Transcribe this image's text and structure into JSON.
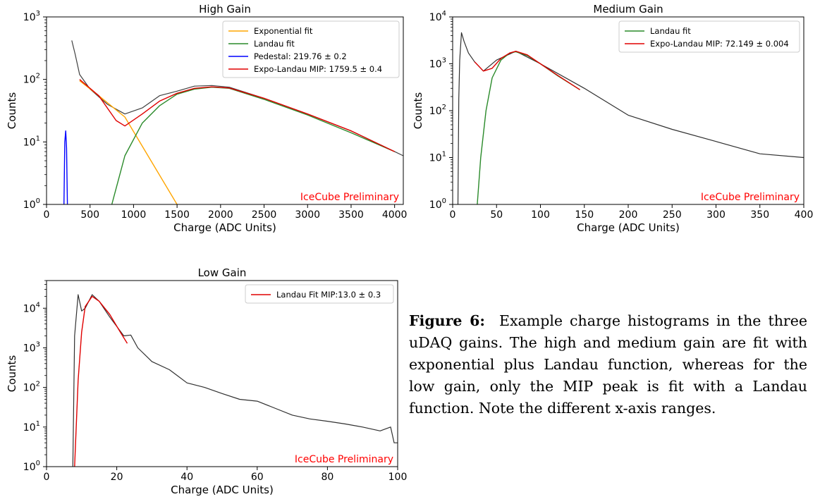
{
  "chart_data": [
    {
      "type": "line",
      "title": "High Gain",
      "xlabel": "Charge (ADC Units)",
      "ylabel": "Counts",
      "xlim": [
        0,
        4100
      ],
      "ylim": [
        1,
        1000
      ],
      "yscale": "log",
      "xticks": [
        "0",
        "500",
        "1000",
        "1500",
        "2000",
        "2500",
        "3000",
        "3500",
        "4000"
      ],
      "yticks": [
        "10^0",
        "10^1",
        "10^2",
        "10^3"
      ],
      "legend_position": "top-right",
      "annotation": "IceCube Preliminary",
      "series": [
        {
          "name": "Exponential fit",
          "color": "#ffa500",
          "points": [
            [
              380,
              95
            ],
            [
              600,
              55
            ],
            [
              900,
              25
            ],
            [
              1200,
              5
            ],
            [
              1500,
              1
            ]
          ]
        },
        {
          "name": "Landau fit",
          "color": "#2a8a2a",
          "points": [
            [
              750,
              1
            ],
            [
              900,
              6
            ],
            [
              1100,
              20
            ],
            [
              1300,
              38
            ],
            [
              1500,
              58
            ],
            [
              1700,
              70
            ],
            [
              1900,
              75
            ],
            [
              2100,
              72
            ],
            [
              2500,
              48
            ],
            [
              3000,
              27
            ],
            [
              3500,
              14
            ],
            [
              4000,
              7
            ]
          ]
        },
        {
          "name": "Pedestal: 219.76 ± 0.2",
          "color": "#0000ff",
          "points": [
            [
              200,
              1
            ],
            [
              210,
              10
            ],
            [
              220,
              15
            ],
            [
              230,
              8
            ],
            [
              240,
              1
            ]
          ]
        },
        {
          "name": "Expo-Landau MIP: 1759.5 ± 0.4",
          "color": "#e00000",
          "points": [
            [
              380,
              100
            ],
            [
              600,
              55
            ],
            [
              800,
              22
            ],
            [
              900,
              18
            ],
            [
              1100,
              28
            ],
            [
              1300,
              45
            ],
            [
              1500,
              60
            ],
            [
              1700,
              72
            ],
            [
              1900,
              76
            ],
            [
              2100,
              73
            ],
            [
              2500,
              50
            ],
            [
              3000,
              28
            ],
            [
              3500,
              15
            ],
            [
              4000,
              7
            ]
          ]
        },
        {
          "name": "",
          "color": "#404040",
          "points": [
            [
              290,
              420
            ],
            [
              330,
              250
            ],
            [
              380,
              120
            ],
            [
              500,
              70
            ],
            [
              700,
              40
            ],
            [
              900,
              28
            ],
            [
              1100,
              35
            ],
            [
              1300,
              55
            ],
            [
              1500,
              65
            ],
            [
              1700,
              78
            ],
            [
              1900,
              80
            ],
            [
              2100,
              75
            ],
            [
              2500,
              50
            ],
            [
              3000,
              28
            ],
            [
              3500,
              15
            ],
            [
              4000,
              7
            ],
            [
              4100,
              6
            ]
          ]
        }
      ]
    },
    {
      "type": "line",
      "title": "Medium Gain",
      "xlabel": "Charge (ADC Units)",
      "ylabel": "Counts",
      "xlim": [
        0,
        400
      ],
      "ylim": [
        1,
        10000
      ],
      "yscale": "log",
      "xticks": [
        "0",
        "50",
        "100",
        "150",
        "200",
        "250",
        "300",
        "350",
        "400"
      ],
      "yticks": [
        "10^0",
        "10^1",
        "10^2",
        "10^3",
        "10^4"
      ],
      "legend_position": "top-right",
      "annotation": "IceCube Preliminary",
      "series": [
        {
          "name": "Landau fit",
          "color": "#2a8a2a",
          "points": [
            [
              28,
              1
            ],
            [
              32,
              10
            ],
            [
              38,
              100
            ],
            [
              45,
              500
            ],
            [
              55,
              1200
            ],
            [
              65,
              1700
            ],
            [
              72,
              1800
            ],
            [
              85,
              1500
            ],
            [
              100,
              1000
            ],
            [
              120,
              550
            ],
            [
              145,
              280
            ]
          ]
        },
        {
          "name": "Expo-Landau MIP: 72.149 ± 0.004",
          "color": "#e00000",
          "points": [
            [
              25,
              1100
            ],
            [
              35,
              700
            ],
            [
              45,
              800
            ],
            [
              55,
              1300
            ],
            [
              65,
              1700
            ],
            [
              72,
              1850
            ],
            [
              85,
              1550
            ],
            [
              100,
              1000
            ],
            [
              120,
              560
            ],
            [
              145,
              280
            ]
          ]
        },
        {
          "name": "",
          "color": "#303030",
          "points": [
            [
              6,
              1
            ],
            [
              7,
              180
            ],
            [
              8,
              1200
            ],
            [
              10,
              4600
            ],
            [
              13,
              3000
            ],
            [
              18,
              1700
            ],
            [
              25,
              1100
            ],
            [
              35,
              700
            ],
            [
              50,
              1200
            ],
            [
              72,
              1850
            ],
            [
              100,
              1000
            ],
            [
              150,
              300
            ],
            [
              200,
              80
            ],
            [
              250,
              40
            ],
            [
              300,
              22
            ],
            [
              350,
              12
            ],
            [
              400,
              10
            ]
          ]
        }
      ]
    },
    {
      "type": "line",
      "title": "Low Gain",
      "xlabel": "Charge (ADC Units)",
      "ylabel": "Counts",
      "xlim": [
        0,
        100
      ],
      "ylim": [
        1,
        50000
      ],
      "yscale": "log",
      "xticks": [
        "0",
        "20",
        "40",
        "60",
        "80",
        "100"
      ],
      "yticks": [
        "10^0",
        "10^1",
        "10^2",
        "10^3",
        "10^4"
      ],
      "legend_position": "top-right",
      "annotation": "IceCube Preliminary",
      "series": [
        {
          "name": "Landau Fit MIP:13.0 ± 0.3",
          "color": "#e00000",
          "points": [
            [
              8,
              1
            ],
            [
              9,
              150
            ],
            [
              10,
              2500
            ],
            [
              11,
              11000
            ],
            [
              13,
              20000
            ],
            [
              15,
              15000
            ],
            [
              18,
              7000
            ],
            [
              21,
              2500
            ],
            [
              23,
              1300
            ]
          ]
        },
        {
          "name": "",
          "color": "#303030",
          "points": [
            [
              7.5,
              1
            ],
            [
              8,
              2000
            ],
            [
              9,
              22000
            ],
            [
              10,
              8500
            ],
            [
              11,
              10000
            ],
            [
              13,
              22000
            ],
            [
              15,
              15000
            ],
            [
              18,
              6000
            ],
            [
              22,
              2000
            ],
            [
              24,
              2100
            ],
            [
              26,
              1000
            ],
            [
              30,
              450
            ],
            [
              35,
              280
            ],
            [
              40,
              130
            ],
            [
              45,
              100
            ],
            [
              50,
              70
            ],
            [
              55,
              50
            ],
            [
              60,
              45
            ],
            [
              65,
              30
            ],
            [
              70,
              20
            ],
            [
              75,
              16
            ],
            [
              80,
              14
            ],
            [
              85,
              12
            ],
            [
              90,
              10
            ],
            [
              95,
              8
            ],
            [
              98,
              10
            ],
            [
              99,
              4
            ],
            [
              100,
              4
            ]
          ]
        }
      ]
    }
  ],
  "caption": {
    "label": "Figure 6:",
    "text": "Example charge histograms in the three uDAQ gains. The high and medium gain are fit with exponential plus Landau function, whereas for the low gain, only the MIP peak is fit with a Landau function. Note the different x-axis ranges."
  }
}
